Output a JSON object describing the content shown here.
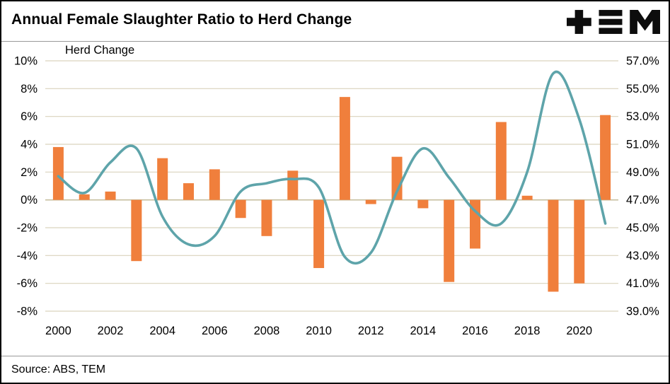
{
  "header": {
    "title": "Annual Female Slaughter Ratio to Herd Change",
    "logo_text": "TEM"
  },
  "footer": {
    "source": "Source: ABS, TEM"
  },
  "chart_data": {
    "type": "bar+line",
    "title": "Annual Female Slaughter Ratio to Herd Change",
    "axis_label_left": "Herd Change",
    "years": [
      2000,
      2001,
      2002,
      2003,
      2004,
      2005,
      2006,
      2007,
      2008,
      2009,
      2010,
      2011,
      2012,
      2013,
      2014,
      2015,
      2016,
      2017,
      2018,
      2019,
      2020,
      2021
    ],
    "x_ticks": [
      "2000",
      "2002",
      "2004",
      "2006",
      "2008",
      "2010",
      "2012",
      "2014",
      "2016",
      "2018",
      "2020"
    ],
    "left_axis": {
      "min": -8,
      "max": 10,
      "step": 2
    },
    "right_axis": {
      "min": 39,
      "max": 57,
      "step": 2
    },
    "left_ticks": [
      "10%",
      "8%",
      "6%",
      "4%",
      "2%",
      "0%",
      "-2%",
      "-4%",
      "-6%",
      "-8%"
    ],
    "right_ticks": [
      "57.0%",
      "55.0%",
      "53.0%",
      "51.0%",
      "49.0%",
      "47.0%",
      "45.0%",
      "43.0%",
      "41.0%",
      "39.0%"
    ],
    "series": [
      {
        "name": "Herd Change",
        "type": "bar",
        "axis": "left",
        "color": "#F07F3C",
        "values": [
          3.8,
          0.4,
          0.6,
          -4.4,
          3.0,
          1.2,
          2.2,
          -1.3,
          -2.6,
          2.1,
          -4.9,
          7.4,
          -0.3,
          3.1,
          -0.6,
          -5.9,
          -3.5,
          5.6,
          0.3,
          -6.6,
          -6.0,
          6.1
        ]
      },
      {
        "name": "Female Slaughter Ratio",
        "type": "line",
        "axis": "right",
        "color": "#5EA4AA",
        "values": [
          48.7,
          47.5,
          49.7,
          50.7,
          45.8,
          43.8,
          44.4,
          47.6,
          48.2,
          48.5,
          47.9,
          42.9,
          43.2,
          47.6,
          50.7,
          48.6,
          46.2,
          45.3,
          49.0,
          56.1,
          52.8,
          45.3
        ]
      }
    ],
    "grid": true,
    "grid_color": "#D9D3BD",
    "zero_line_color": "#C7BF9F",
    "legend_position": "none"
  }
}
